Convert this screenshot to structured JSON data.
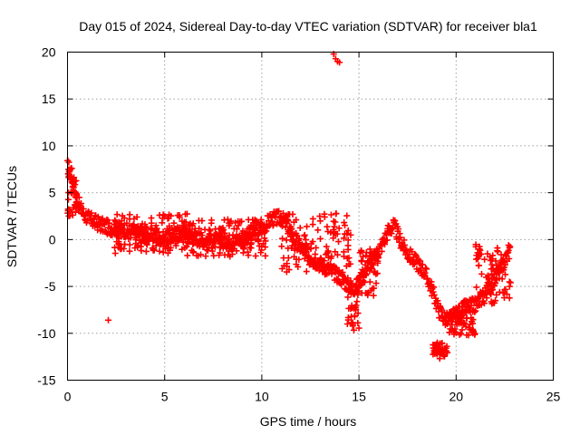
{
  "chart_data": {
    "type": "scatter",
    "title": "Day 015 of 2024, Sidereal Day-to-day VTEC variation (SDTVAR) for receiver bla1",
    "xlabel": "GPS time / hours",
    "ylabel": "SDTVAR / TECUs",
    "xlim": [
      0,
      25
    ],
    "ylim": [
      -15,
      20
    ],
    "xticks": [
      0,
      5,
      10,
      15,
      20,
      25
    ],
    "yticks": [
      -15,
      -10,
      -5,
      0,
      5,
      10,
      15,
      20
    ],
    "xtick_labels": [
      "0",
      "5",
      "10",
      "15",
      "20",
      "25"
    ],
    "ytick_labels": [
      "-15",
      "-10",
      "-5",
      "0",
      "5",
      "10",
      "15",
      "20"
    ],
    "grid": true,
    "marker": "+",
    "color": "#ff0000",
    "series": [
      {
        "name": "SDTVAR",
        "trend": [
          [
            0.0,
            7.8
          ],
          [
            0.1,
            7.5
          ],
          [
            0.2,
            6.8
          ],
          [
            0.3,
            6.0
          ],
          [
            0.4,
            5.2
          ],
          [
            0.5,
            4.2
          ],
          [
            0.7,
            3.2
          ],
          [
            0.9,
            2.6
          ],
          [
            1.2,
            2.1
          ],
          [
            1.5,
            1.8
          ],
          [
            1.8,
            1.5
          ],
          [
            2.1,
            1.3
          ],
          [
            2.5,
            1.2
          ],
          [
            3.0,
            1.0
          ],
          [
            3.5,
            0.8
          ],
          [
            4.0,
            0.5
          ],
          [
            4.5,
            0.4
          ],
          [
            5.0,
            0.0
          ],
          [
            5.5,
            0.5
          ],
          [
            6.0,
            0.7
          ],
          [
            6.5,
            0.2
          ],
          [
            7.0,
            0.0
          ],
          [
            7.5,
            -0.2
          ],
          [
            8.0,
            0.0
          ],
          [
            8.5,
            -0.3
          ],
          [
            9.0,
            0.2
          ],
          [
            9.5,
            0.6
          ],
          [
            10.0,
            1.2
          ],
          [
            10.5,
            2.2
          ],
          [
            11.0,
            2.3
          ],
          [
            11.3,
            1.5
          ],
          [
            11.6,
            0.3
          ],
          [
            12.0,
            -0.8
          ],
          [
            12.5,
            -1.8
          ],
          [
            13.0,
            -2.6
          ],
          [
            13.5,
            -3.3
          ],
          [
            14.0,
            -3.9
          ],
          [
            14.4,
            -4.8
          ],
          [
            14.8,
            -5.2
          ],
          [
            15.1,
            -4.2
          ],
          [
            15.4,
            -3.0
          ],
          [
            15.8,
            -2.0
          ],
          [
            16.2,
            -0.5
          ],
          [
            16.5,
            0.9
          ],
          [
            16.8,
            1.5
          ],
          [
            17.1,
            0.0
          ],
          [
            17.5,
            -1.5
          ],
          [
            18.0,
            -2.5
          ],
          [
            18.4,
            -3.5
          ],
          [
            18.8,
            -5.5
          ],
          [
            19.1,
            -7.5
          ],
          [
            19.5,
            -8.6
          ],
          [
            20.0,
            -8.0
          ],
          [
            20.5,
            -7.2
          ],
          [
            21.0,
            -7.0
          ],
          [
            21.5,
            -5.7
          ],
          [
            22.0,
            -4.2
          ],
          [
            22.4,
            -2.8
          ],
          [
            22.8,
            -1.0
          ]
        ],
        "scatter_ranges": [
          {
            "x": [
              0.0,
              0.5
            ],
            "y": [
              2.5,
              7.8
            ]
          },
          {
            "x": [
              2.4,
              6.2
            ],
            "y": [
              -1.5,
              2.8
            ]
          },
          {
            "x": [
              6.0,
              10.2
            ],
            "y": [
              -1.8,
              2.2
            ]
          },
          {
            "x": [
              11.0,
              14.6
            ],
            "y": [
              -3.5,
              2.8
            ]
          },
          {
            "x": [
              14.4,
              15.0
            ],
            "y": [
              -9.9,
              -4.5
            ]
          },
          {
            "x": [
              15.0,
              16.0
            ],
            "y": [
              -6.0,
              -1.0
            ]
          },
          {
            "x": [
              18.8,
              19.6
            ],
            "y": [
              -12.7,
              -11.0
            ]
          },
          {
            "x": [
              19.6,
              21.0
            ],
            "y": [
              -10.2,
              -7.5
            ]
          },
          {
            "x": [
              21.0,
              22.8
            ],
            "y": [
              -7.0,
              -0.5
            ]
          }
        ],
        "outliers": [
          [
            2.1,
            -8.6
          ],
          [
            13.7,
            19.8
          ],
          [
            13.8,
            19.3
          ],
          [
            13.9,
            19.0
          ],
          [
            14.0,
            18.9
          ],
          [
            16.8,
            2.0
          ],
          [
            22.7,
            -0.6
          ],
          [
            22.8,
            -4.6
          ]
        ]
      }
    ]
  }
}
